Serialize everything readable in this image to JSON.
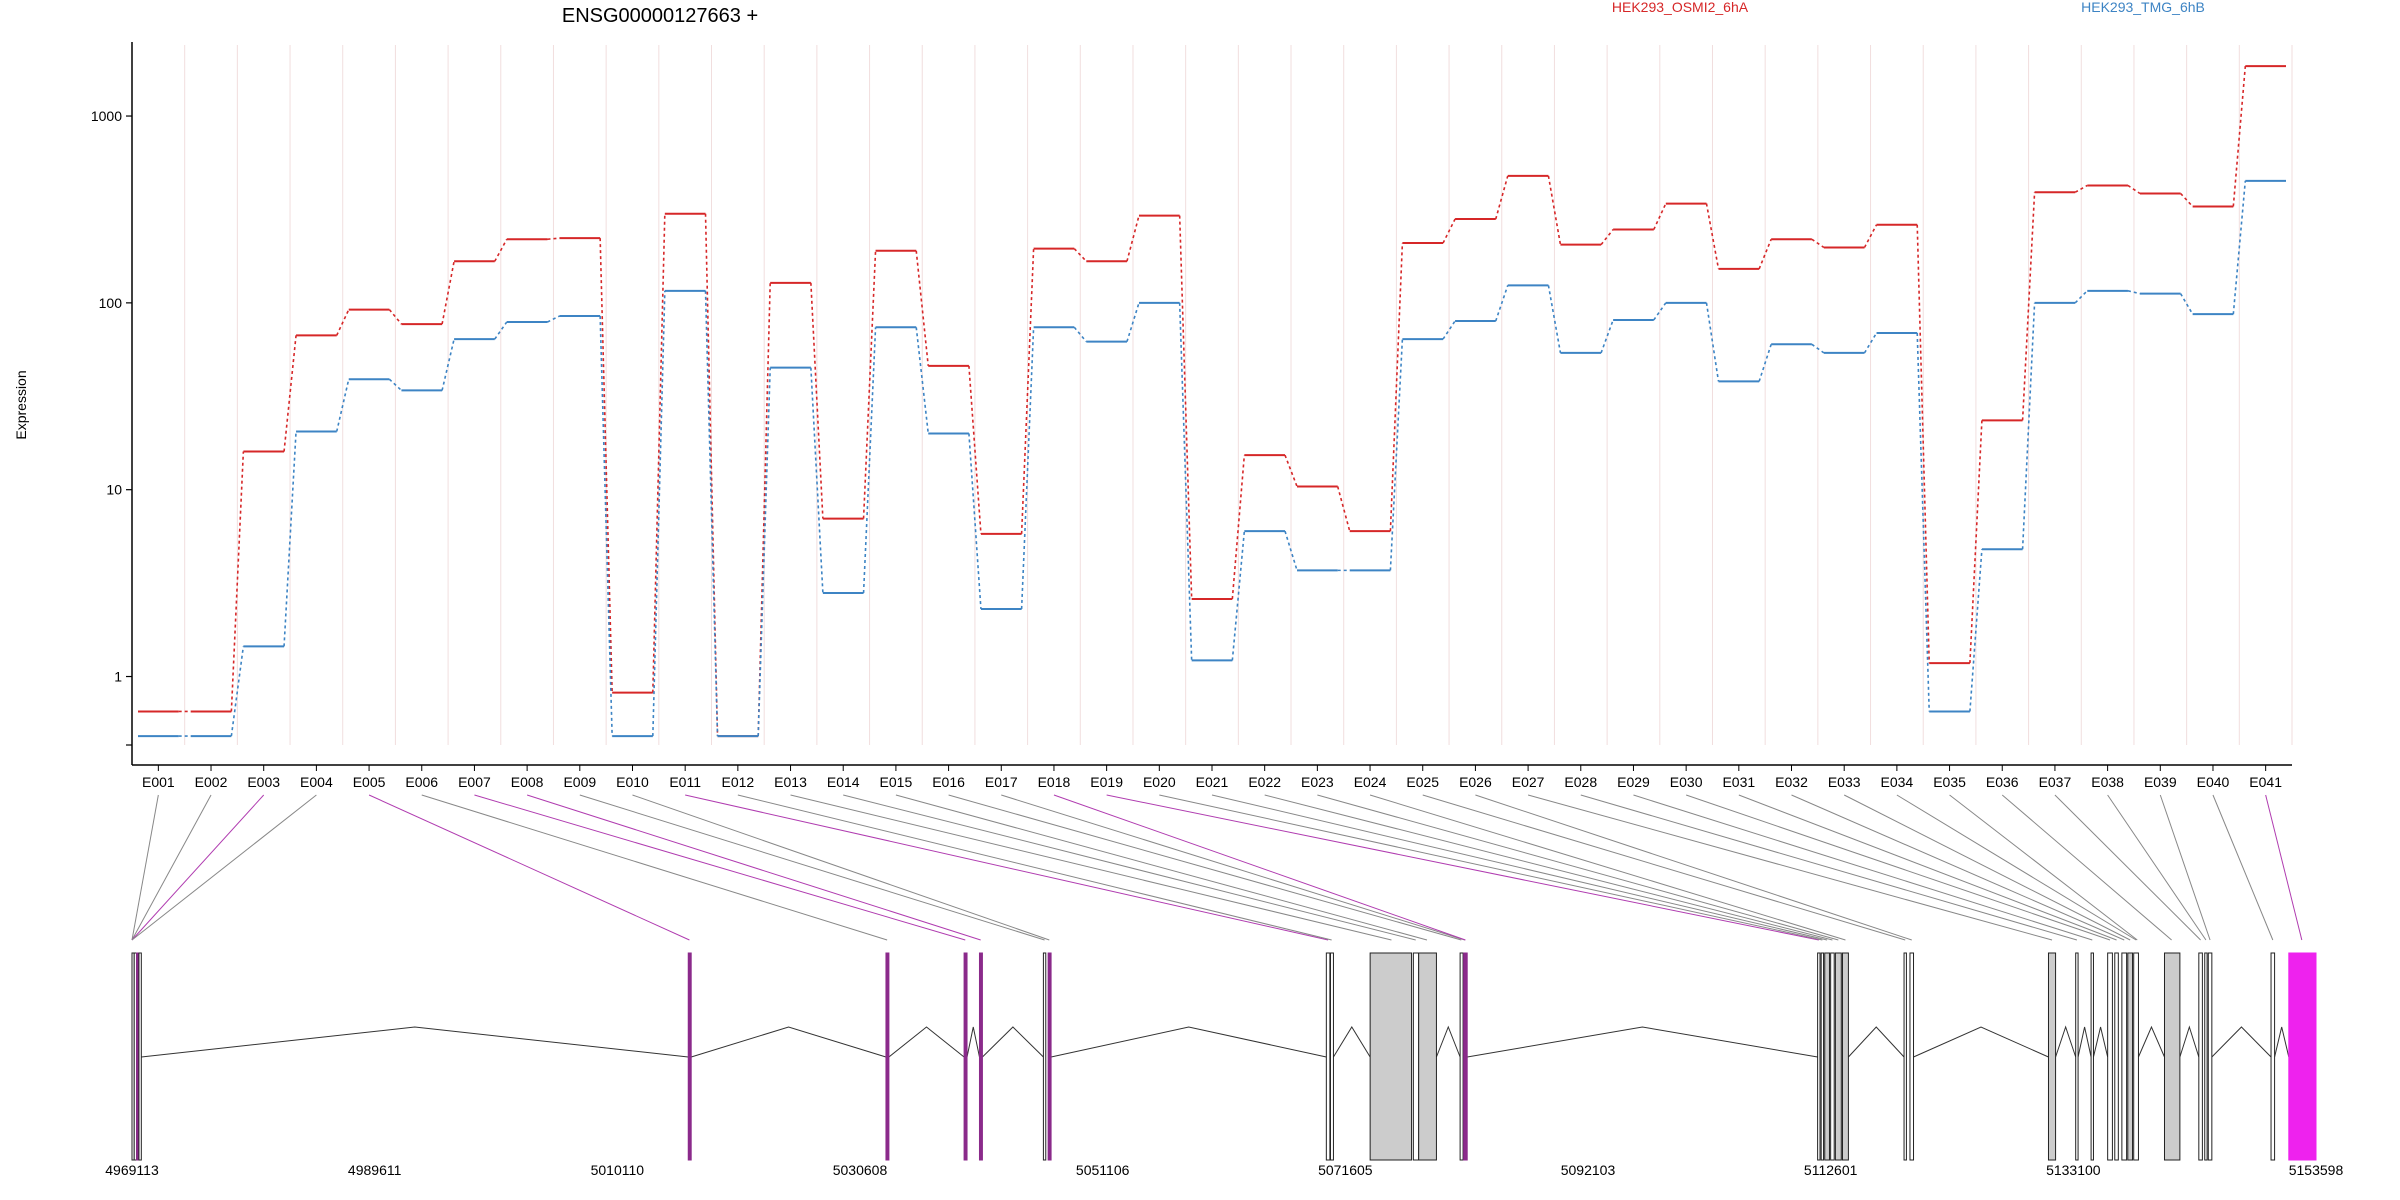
{
  "chart_data": {
    "type": "line",
    "title": "ENSG00000127663 +",
    "ylabel": "Expression",
    "yscale": "log",
    "ylim": [
      0.43,
      2400
    ],
    "yticks": [
      {
        "value": 1,
        "label": "1"
      },
      {
        "value": 10,
        "label": "10"
      },
      {
        "value": 100,
        "label": "100"
      },
      {
        "value": 1000,
        "label": "1000"
      }
    ],
    "categories": [
      "E001",
      "E002",
      "E003",
      "E004",
      "E005",
      "E006",
      "E007",
      "E008",
      "E009",
      "E010",
      "E011",
      "E012",
      "E013",
      "E014",
      "E015",
      "E016",
      "E017",
      "E018",
      "E019",
      "E020",
      "E021",
      "E022",
      "E023",
      "E024",
      "E025",
      "E026",
      "E027",
      "E028",
      "E029",
      "E030",
      "E031",
      "E032",
      "E033",
      "E034",
      "E035",
      "E036",
      "E037",
      "E038",
      "E039",
      "E040",
      "E041"
    ],
    "series": [
      {
        "name": "HEK293_OSMI2_6hA",
        "color": "#d62728",
        "values": [
          0.65,
          0.65,
          16,
          67,
          92,
          77,
          167,
          219,
          222,
          0.82,
          300,
          0.48,
          128,
          7.0,
          190,
          46,
          5.8,
          195,
          167,
          293,
          2.6,
          15.3,
          10.4,
          6.0,
          209,
          281,
          478,
          205,
          247,
          340,
          152,
          219,
          198,
          262,
          1.18,
          23.5,
          391,
          425,
          385,
          328,
          1850
        ]
      },
      {
        "name": "HEK293_TMG_6hB",
        "color": "#3d84c4",
        "values": [
          0.48,
          0.48,
          1.45,
          20.5,
          39,
          34,
          64,
          79,
          85,
          0.48,
          116,
          0.48,
          45,
          2.8,
          74,
          20,
          2.3,
          74,
          62,
          100,
          1.22,
          6.0,
          3.7,
          3.7,
          64,
          80,
          124,
          54,
          81,
          100,
          38,
          60,
          54,
          69,
          0.65,
          4.8,
          100,
          116,
          112,
          87,
          450
        ]
      }
    ],
    "genome_track": {
      "coord_ticks": [
        "4969113",
        "4989611",
        "5010110",
        "5030608",
        "5051106",
        "5071605",
        "5092103",
        "5112601",
        "5133100",
        "5153598"
      ],
      "range": [
        4969113,
        5153598
      ],
      "highlight_color": "#8b2a8b",
      "last_exon_color": "#ee22ee",
      "exons": [
        [
          4969113,
          4969300,
          "n"
        ],
        [
          4969300,
          4969500,
          "n"
        ],
        [
          4969500,
          4969700,
          "h"
        ],
        [
          4969700,
          4969900,
          "n"
        ],
        [
          5016100,
          5016350,
          "h"
        ],
        [
          5032800,
          5033050,
          "h"
        ],
        [
          5039400,
          5039650,
          "h"
        ],
        [
          5040700,
          5040950,
          "h"
        ],
        [
          5046100,
          5046300,
          "n"
        ],
        [
          5046500,
          5046750,
          "h"
        ],
        [
          5070000,
          5070300,
          "n"
        ],
        [
          5070350,
          5070600,
          "n"
        ],
        [
          5073700,
          5077200,
          "g"
        ],
        [
          5077350,
          5077800,
          "n"
        ],
        [
          5077800,
          5079300,
          "g"
        ],
        [
          5081300,
          5081550,
          "n"
        ],
        [
          5081600,
          5081900,
          "h"
        ],
        [
          5111500,
          5111700,
          "n"
        ],
        [
          5111800,
          5112000,
          "n"
        ],
        [
          5112100,
          5112500,
          "g"
        ],
        [
          5112600,
          5112900,
          "n"
        ],
        [
          5113000,
          5113500,
          "g"
        ],
        [
          5113600,
          5114100,
          "g"
        ],
        [
          5118800,
          5119000,
          "n"
        ],
        [
          5119300,
          5119600,
          "n"
        ],
        [
          5131000,
          5131600,
          "g"
        ],
        [
          5133300,
          5133500,
          "n"
        ],
        [
          5134600,
          5134800,
          "n"
        ],
        [
          5136000,
          5136400,
          "n"
        ],
        [
          5136600,
          5136900,
          "n"
        ],
        [
          5137200,
          5137600,
          "n"
        ],
        [
          5137700,
          5138100,
          "g"
        ],
        [
          5138200,
          5138600,
          "n"
        ],
        [
          5140800,
          5142100,
          "g"
        ],
        [
          5143700,
          5144000,
          "n"
        ],
        [
          5144200,
          5144400,
          "n"
        ],
        [
          5144500,
          5144800,
          "n"
        ],
        [
          5149800,
          5150100,
          "n"
        ],
        [
          5151300,
          5153598,
          "m"
        ]
      ],
      "label_attach": [
        4969113,
        4969113,
        4969113,
        4969113,
        5016200,
        5032900,
        5039500,
        5040800,
        5046200,
        5046600,
        5070150,
        5070450,
        5075500,
        5077550,
        5078500,
        5081400,
        5081700,
        5081750,
        5111600,
        5111900,
        5112300,
        5112750,
        5113250,
        5113850,
        5118900,
        5119450,
        5131300,
        5133400,
        5134700,
        5136200,
        5136750,
        5137400,
        5137900,
        5138400,
        5138500,
        5141400,
        5143850,
        5144300,
        5144650,
        5149950,
        5152400
      ],
      "highlight_links": [
        2,
        4,
        6,
        7,
        10,
        17,
        18,
        40
      ]
    }
  }
}
